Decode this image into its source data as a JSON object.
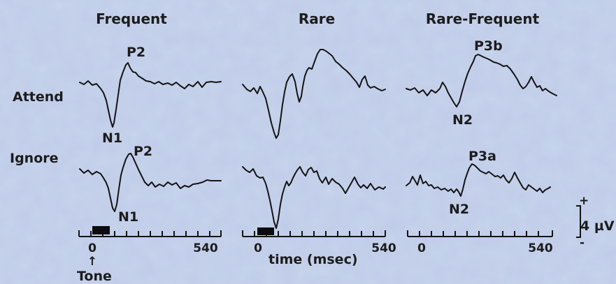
{
  "columns": {
    "frequent": "Frequent",
    "rare": "Rare",
    "rare_frequent": "Rare-Frequent"
  },
  "rows": {
    "attend": "Attend",
    "ignore": "Ignore"
  },
  "peaks": {
    "freq_attend_p2": "P2",
    "freq_attend_n1": "N1",
    "freq_ignore_p2": "P2",
    "freq_ignore_n1": "N1",
    "rf_attend_p3b": "P3b",
    "rf_attend_n2": "N2",
    "rf_ignore_p3a": "P3a",
    "rf_ignore_n2": "N2"
  },
  "axes": {
    "tick_start": "0",
    "tick_end": "540",
    "time_label": "time (msec)",
    "stimulus_label": "Tone",
    "stimulus_arrow": "↑"
  },
  "scale": {
    "plus": "+",
    "minus": "-",
    "value": "4 µV"
  },
  "colors": {
    "background": "#c5d3ea",
    "ink": "#141414"
  }
}
